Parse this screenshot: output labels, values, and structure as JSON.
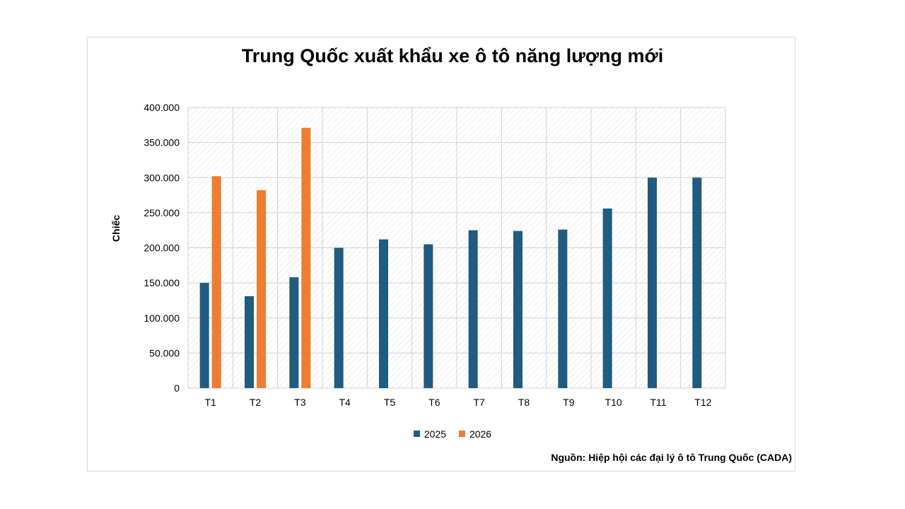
{
  "chart_data": {
    "type": "bar",
    "title": "Trung Quốc xuất khẩu xe ô tô năng lượng mới",
    "ylabel": "Chiếc",
    "xlabel": "",
    "categories": [
      "T1",
      "T2",
      "T3",
      "T4",
      "T5",
      "T6",
      "T7",
      "T8",
      "T9",
      "T10",
      "T11",
      "T12"
    ],
    "series": [
      {
        "name": "2025",
        "color": "#1f5c7f",
        "values": [
          150000,
          131000,
          158000,
          200000,
          212000,
          205000,
          225000,
          224000,
          226000,
          256000,
          300000,
          300000
        ]
      },
      {
        "name": "2026",
        "color": "#ed7d31",
        "values": [
          302000,
          282000,
          371000,
          null,
          null,
          null,
          null,
          null,
          null,
          null,
          null,
          null
        ]
      }
    ],
    "ylim": [
      0,
      400000
    ],
    "yticks": [
      0,
      50000,
      100000,
      150000,
      200000,
      250000,
      300000,
      350000,
      400000
    ],
    "ytick_labels": [
      "0",
      "50.000",
      "100.000",
      "150.000",
      "200.000",
      "250.000",
      "300.000",
      "350.000",
      "400.000"
    ],
    "grid": true,
    "legend_position": "bottom",
    "source": "Nguồn: Hiệp hội các đại lý ô tô Trung Quốc (CADA)"
  }
}
